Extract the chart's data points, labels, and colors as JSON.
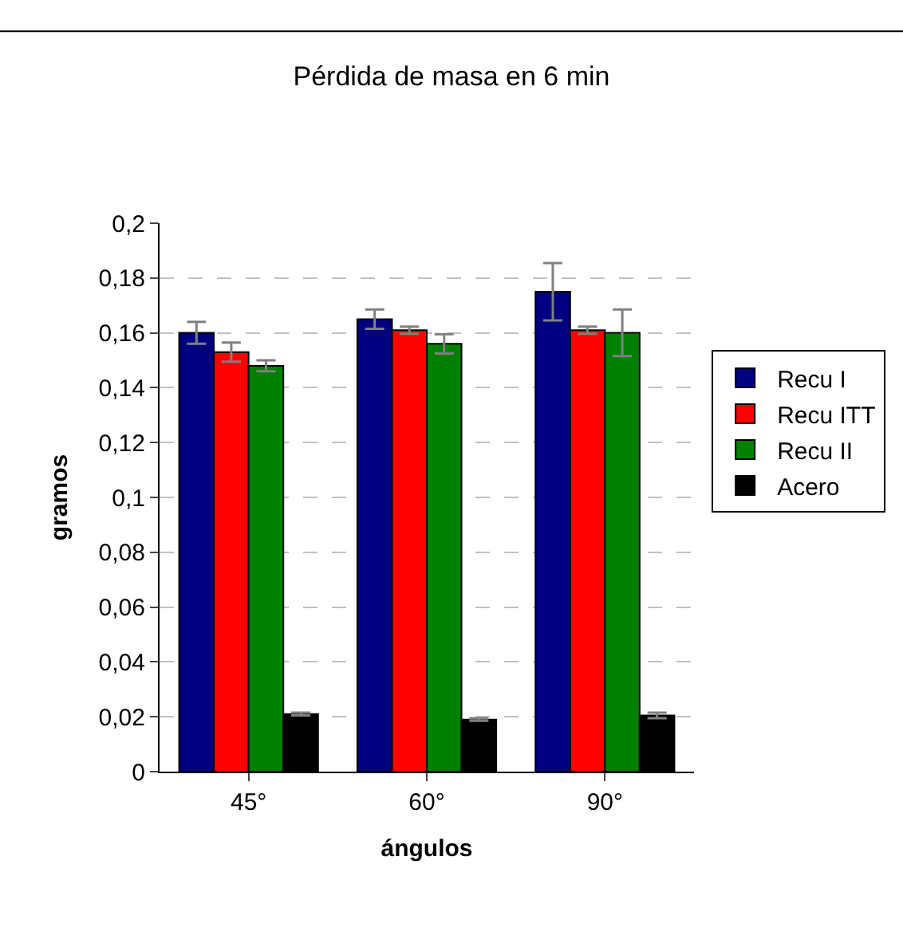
{
  "chart_data": {
    "type": "bar",
    "title": "Pérdida de masa en 6 min",
    "xlabel": "ángulos",
    "ylabel": "gramos",
    "categories": [
      "45°",
      "60°",
      "90°"
    ],
    "series": [
      {
        "name": "Recu I",
        "color": "#000080",
        "values": [
          0.16,
          0.165,
          0.175
        ],
        "errors": [
          0.004,
          0.0035,
          0.0105
        ]
      },
      {
        "name": "Recu ITT",
        "color": "#ff0000",
        "values": [
          0.153,
          0.161,
          0.161
        ],
        "errors": [
          0.0035,
          0.0013,
          0.0013
        ]
      },
      {
        "name": "Recu II",
        "color": "#008000",
        "values": [
          0.148,
          0.156,
          0.16
        ],
        "errors": [
          0.002,
          0.0035,
          0.0085
        ]
      },
      {
        "name": "Acero",
        "color": "#000000",
        "values": [
          0.021,
          0.019,
          0.0205
        ],
        "errors": [
          0.0005,
          0.0005,
          0.001
        ]
      }
    ],
    "ylim": [
      0,
      0.2
    ],
    "yticks": [
      {
        "value": 0,
        "label": "0"
      },
      {
        "value": 0.02,
        "label": "0,02"
      },
      {
        "value": 0.04,
        "label": "0,04"
      },
      {
        "value": 0.06,
        "label": "0,06"
      },
      {
        "value": 0.08,
        "label": "0,08"
      },
      {
        "value": 0.1,
        "label": "0,1"
      },
      {
        "value": 0.12,
        "label": "0,12"
      },
      {
        "value": 0.14,
        "label": "0,14"
      },
      {
        "value": 0.16,
        "label": "0,16"
      },
      {
        "value": 0.18,
        "label": "0,18"
      },
      {
        "value": 0.2,
        "label": "0,2"
      }
    ],
    "grid": "y",
    "legend": "right"
  }
}
